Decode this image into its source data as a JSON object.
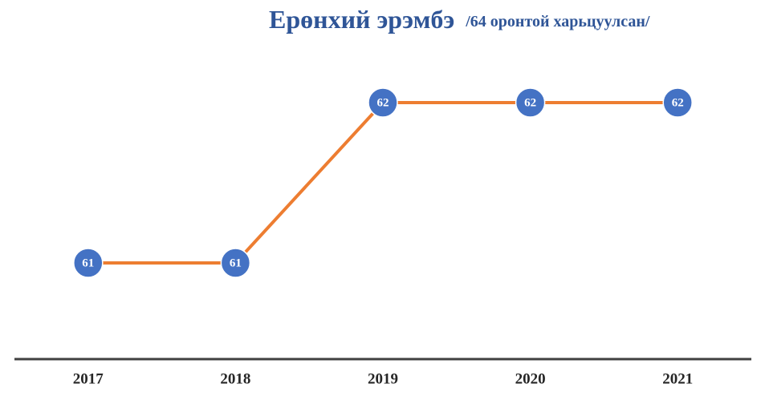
{
  "chart_data": {
    "type": "line",
    "title": "Ерөнхий эрэмбэ",
    "subtitle": "/64 оронтой харьцуулсан/",
    "categories": [
      "2017",
      "2018",
      "2019",
      "2020",
      "2021"
    ],
    "series": [
      {
        "name": "Ерөнхий эрэмбэ",
        "color": "#ed7d31",
        "values": [
          61,
          61,
          62,
          62,
          62
        ]
      }
    ],
    "marker_color": "#4472c4",
    "ylim": [
      60.4,
      62.4
    ]
  }
}
